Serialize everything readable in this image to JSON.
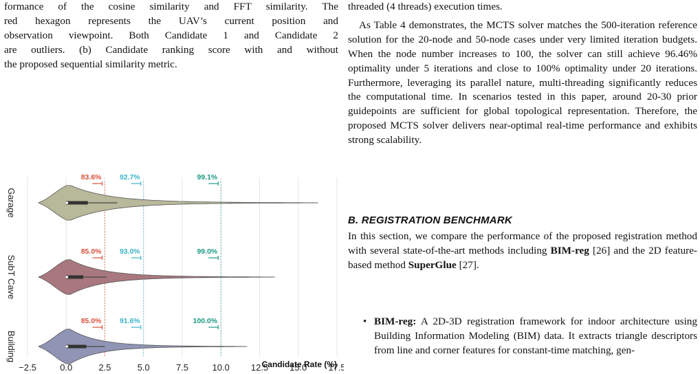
{
  "left_column": {
    "caption_lines": [
      "formance of the cosine similarity and FFT similarity. The",
      "red hexagon represents the UAV’s current position and",
      "observation viewpoint. Both Candidate 1 and Candidate 2",
      "are outliers. (b) Candidate ranking score with and without",
      "the proposed sequential similarity metric."
    ]
  },
  "right_column": {
    "top_lines": [
      "threaded (4 threads) execution times."
    ],
    "para2": "As Table 4 demonstrates, the MCTS solver matches the 500-iteration reference solution for the 20-node and 50-node cases under very limited iteration budgets. When the node number increases to 100, the solver can still achieve 96.46% optimality under 5 iterations and close to 100% optimality under 20 iterations. Furthermore, leveraging its parallel nature, multi-threading significantly reduces the computational time. In scenarios tested in this paper, around 20-30 prior guidepoints are sufficient for global topological representation. Therefore, the proposed MCTS solver delivers near-optimal real-time performance and exhibits strong scalability.",
    "section_heading": "B. REGISTRATION BENCHMARK",
    "section_para_a": "In this section, we compare the performance of the proposed registration method with several state-of-the-art methods including ",
    "section_bold_1": "BIM-reg",
    "section_para_b": " [26] and the 2D feature-based method ",
    "section_bold_2": "SuperGlue",
    "section_para_c": " [27].",
    "bullet_bold": "BIM-reg:",
    "bullet_text": " A 2D-3D registration framework for indoor architecture using Building Information Modeling (BIM) data. It extracts triangle descriptors from line and corner features for constant-time matching, gen-"
  },
  "chart_data": {
    "type": "violin",
    "xlabel": "Candidate Rate (%)",
    "xlim": [
      -2.5,
      17.5
    ],
    "x_ticks": [
      "−2.5",
      "0.0",
      "2.5",
      "5.0",
      "7.5",
      "10.0",
      "12.5",
      "15.0",
      "17.5"
    ],
    "reference_lines": [
      2.5,
      5.0,
      10.0
    ],
    "series": [
      {
        "name": "Garage",
        "color": "#b8b89a",
        "max": 16.3,
        "iqr": [
          0.0,
          1.4
        ],
        "whisker_hi": 3.3,
        "annotations": [
          {
            "text": "83.6%",
            "x": 2.5,
            "color": "#d9503a"
          },
          {
            "text": "92.7%",
            "x": 5.0,
            "color": "#3bb3c9"
          },
          {
            "text": "99.1%",
            "x": 10.0,
            "color": "#1a9a82"
          }
        ]
      },
      {
        "name": "SubT Cave",
        "color": "#a8787e",
        "max": 13.5,
        "iqr": [
          0.0,
          1.1
        ],
        "whisker_hi": 2.6,
        "annotations": [
          {
            "text": "85.0%",
            "x": 2.5,
            "color": "#d9503a"
          },
          {
            "text": "93.0%",
            "x": 5.0,
            "color": "#3bb3c9"
          },
          {
            "text": "99.0%",
            "x": 10.0,
            "color": "#1a9a82"
          }
        ]
      },
      {
        "name": "Building",
        "color": "#9095b5",
        "max": 11.7,
        "iqr": [
          0.0,
          1.3
        ],
        "whisker_hi": 2.5,
        "annotations": [
          {
            "text": "85.0%",
            "x": 2.5,
            "color": "#d9503a"
          },
          {
            "text": "91.6%",
            "x": 5.0,
            "color": "#3bb3c9"
          },
          {
            "text": "100.0%",
            "x": 10.0,
            "color": "#1a9a82"
          }
        ]
      }
    ]
  }
}
